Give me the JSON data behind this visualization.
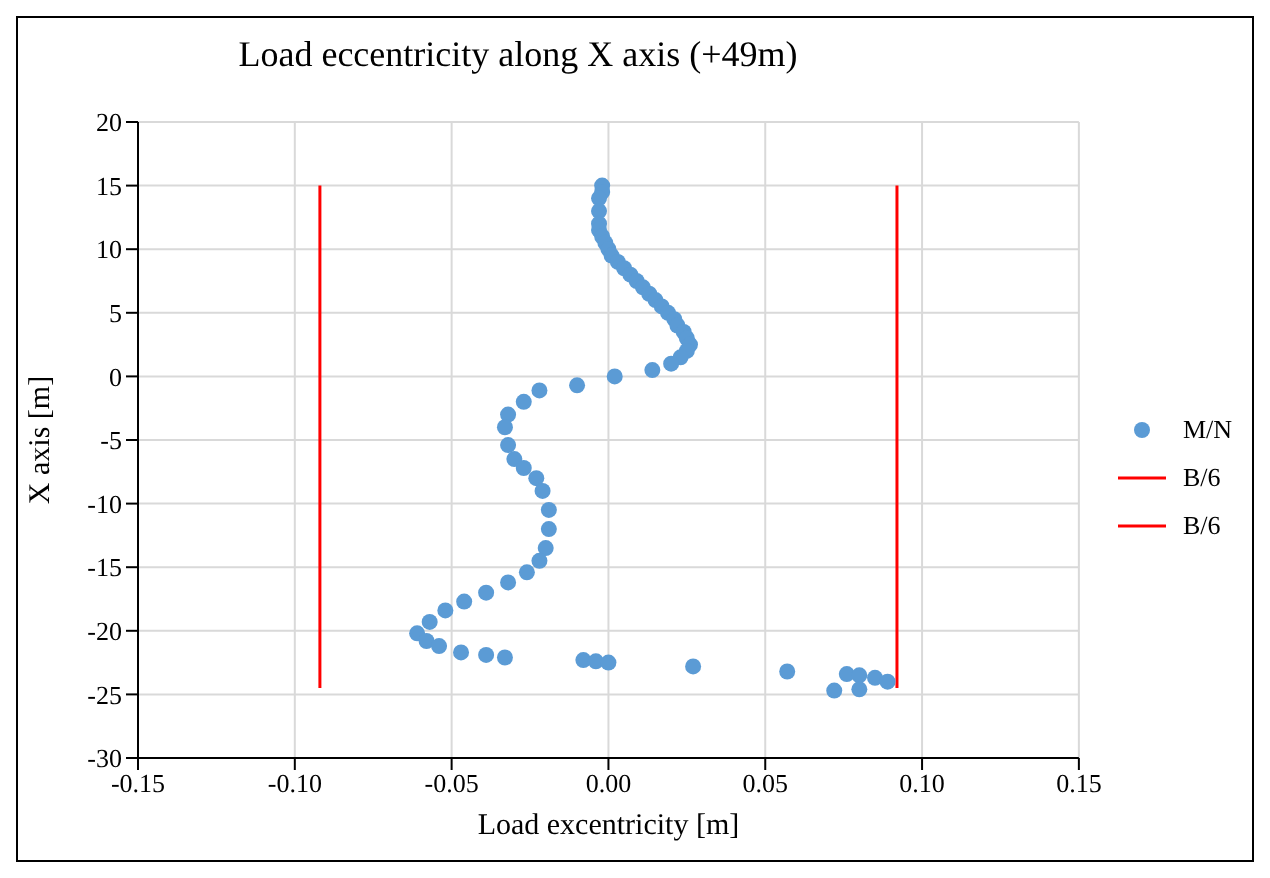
{
  "chart_data": {
    "type": "scatter",
    "title": "Load eccentricity along X axis (+49m)",
    "xlabel": "Load excentricity [m]",
    "ylabel": "X axis [m]",
    "xlim": [
      -0.15,
      0.15
    ],
    "xticks": [
      {
        "value": -0.15,
        "label": "-0.15"
      },
      {
        "value": -0.1,
        "label": "-0.10"
      },
      {
        "value": -0.05,
        "label": "-0.05"
      },
      {
        "value": 0,
        "label": "0.00"
      },
      {
        "value": 0.05,
        "label": "0.05"
      },
      {
        "value": 0.1,
        "label": "0.10"
      },
      {
        "value": 0.15,
        "label": "0.15"
      }
    ],
    "ylim": [
      -30,
      20
    ],
    "yticks": [
      -30,
      -25,
      -20,
      -15,
      -10,
      -5,
      0,
      5,
      10,
      15,
      20
    ],
    "grid": true,
    "legend": "right",
    "marker": "circle",
    "series": [
      {
        "name": "M/N",
        "color": "#5b9bd5",
        "x": [
          -0.002,
          -0.002,
          -0.003,
          -0.003,
          -0.003,
          -0.003,
          -0.002,
          -0.001,
          0.0,
          0.001,
          0.003,
          0.005,
          0.007,
          0.009,
          0.011,
          0.013,
          0.015,
          0.017,
          0.019,
          0.021,
          0.022,
          0.024,
          0.025,
          0.026,
          0.025,
          0.023,
          0.02,
          0.014,
          0.002,
          -0.01,
          -0.022,
          -0.027,
          -0.032,
          -0.033,
          -0.032,
          -0.03,
          -0.027,
          -0.023,
          -0.021,
          -0.019,
          -0.019,
          -0.02,
          -0.022,
          -0.026,
          -0.032,
          -0.039,
          -0.046,
          -0.052,
          -0.057,
          -0.061,
          -0.058,
          -0.054,
          -0.047,
          -0.039,
          -0.033,
          -0.008,
          -0.004,
          0.0,
          0.027,
          0.057,
          0.076,
          0.08,
          0.085,
          0.089,
          0.072,
          0.08
        ],
        "values": [
          15,
          14.5,
          14,
          13,
          12,
          11.5,
          11,
          10.5,
          10,
          9.5,
          9,
          8.5,
          8,
          7.5,
          7,
          6.5,
          6,
          5.5,
          5,
          4.5,
          4,
          3.5,
          3,
          2.5,
          2,
          1.5,
          1,
          0.5,
          0,
          -0.7,
          -1.1,
          -2,
          -3,
          -4,
          -5.4,
          -6.5,
          -7.2,
          -8,
          -9,
          -10.5,
          -12,
          -13.5,
          -14.5,
          -15.4,
          -16.2,
          -17,
          -17.7,
          -18.4,
          -19.3,
          -20.2,
          -20.8,
          -21.2,
          -21.7,
          -21.9,
          -22.1,
          -22.3,
          -22.4,
          -22.5,
          -22.8,
          -23.2,
          -23.4,
          -23.5,
          -23.7,
          -24,
          -24.7,
          -24.6
        ]
      },
      {
        "name": "B/6",
        "type": "line",
        "color": "#ff0000",
        "marker": "none",
        "x": [
          -0.092,
          -0.092
        ],
        "values": [
          15,
          -24.5
        ]
      },
      {
        "name": "B/6",
        "type": "line",
        "color": "#ff0000",
        "marker": "none",
        "x": [
          0.092,
          0.092
        ],
        "values": [
          15,
          -24.5
        ]
      }
    ]
  }
}
